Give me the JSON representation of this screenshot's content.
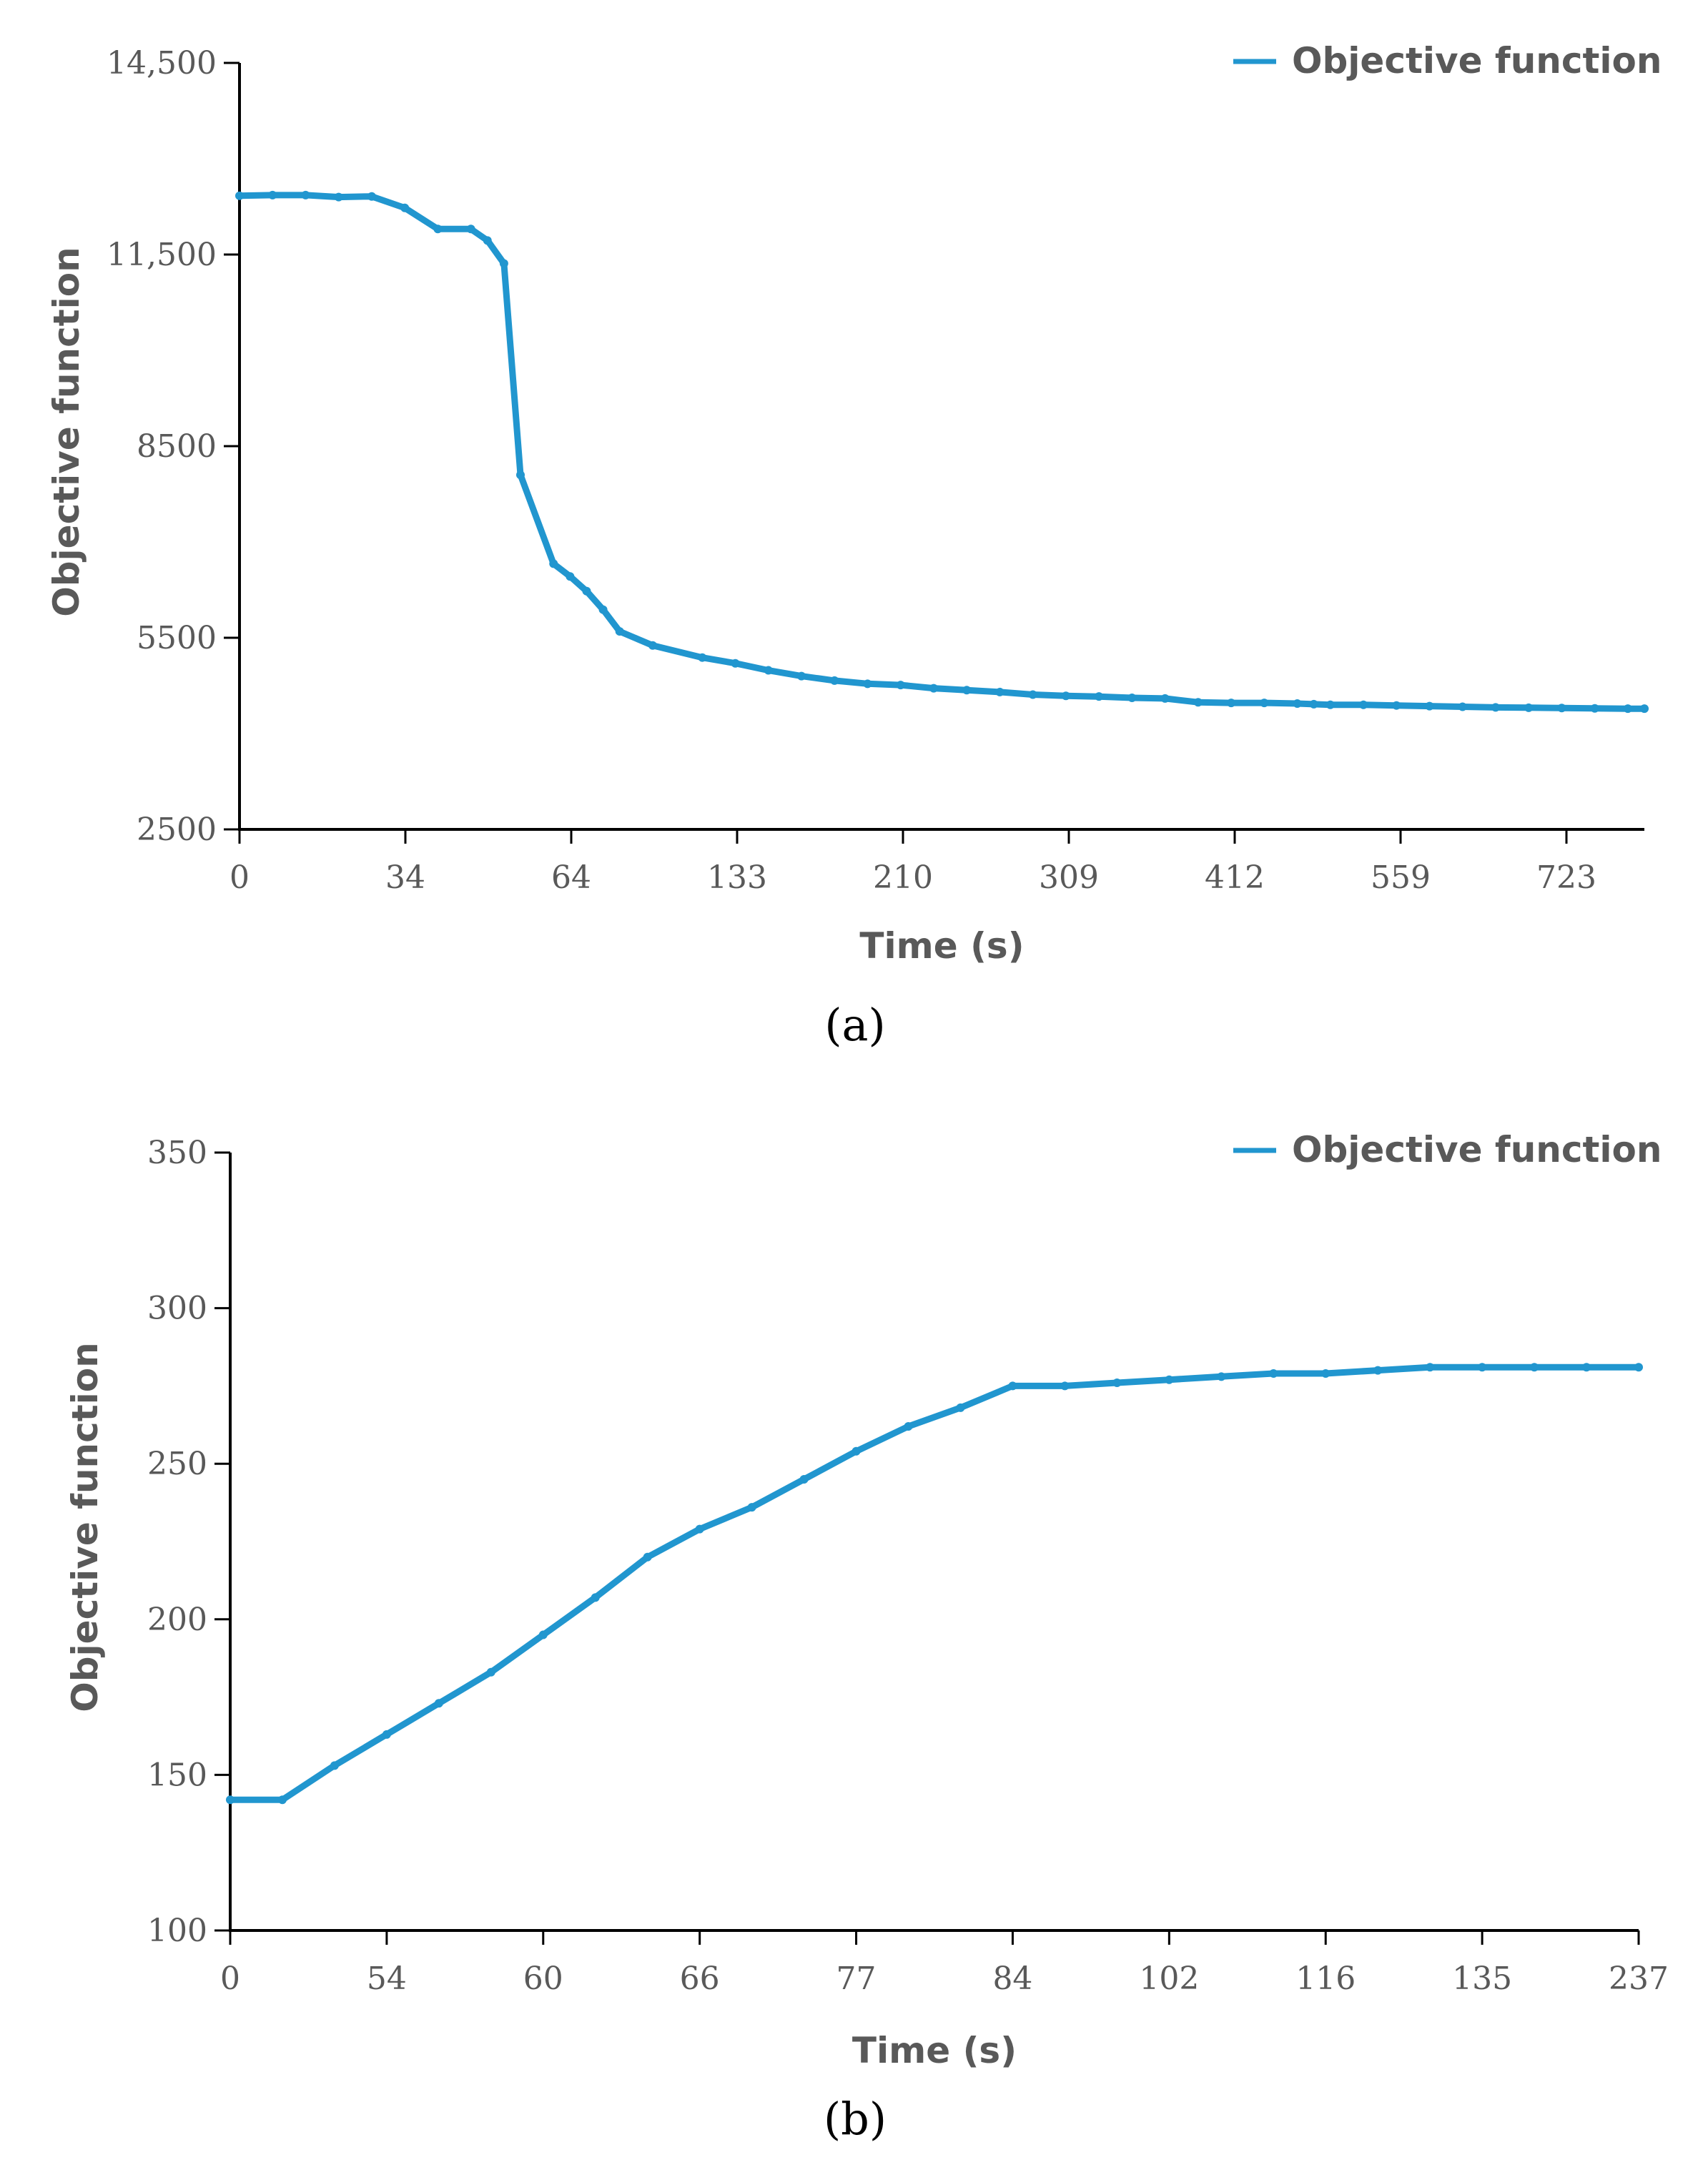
{
  "series_color": "#2196cf",
  "chart_data": [
    {
      "type": "line",
      "panel_label": "(a)",
      "xlabel": "Time (s)",
      "ylabel": "Objective function",
      "legend": "Objective function",
      "legend_position": "top-right",
      "grid": false,
      "ylim": [
        2500,
        14500
      ],
      "yticks": [
        2500,
        5500,
        8500,
        11500,
        14500
      ],
      "ytick_labels": [
        "2500",
        "5500",
        "8500",
        "11,500",
        "14,500"
      ],
      "xtick_labels": [
        "0",
        "34",
        "64",
        "133",
        "210",
        "309",
        "412",
        "559",
        "723"
      ],
      "x_index_range": [
        0,
        85
      ],
      "x_index": [
        0,
        2,
        4,
        6,
        8,
        10,
        12,
        14,
        15,
        16,
        17,
        19,
        20,
        21,
        22,
        23,
        25,
        28,
        30,
        32,
        34,
        36,
        38,
        40,
        42,
        44,
        46,
        48,
        50,
        52,
        54,
        56,
        58,
        60,
        62,
        64,
        65,
        66,
        68,
        70,
        72,
        74,
        76,
        78,
        80,
        82,
        84,
        85
      ],
      "values": [
        12420,
        12430,
        12430,
        12400,
        12410,
        12230,
        11900,
        11900,
        11720,
        11360,
        8050,
        6660,
        6460,
        6230,
        5940,
        5600,
        5380,
        5190,
        5100,
        4990,
        4900,
        4830,
        4780,
        4760,
        4710,
        4680,
        4650,
        4610,
        4590,
        4580,
        4560,
        4550,
        4490,
        4480,
        4480,
        4470,
        4460,
        4450,
        4450,
        4440,
        4430,
        4420,
        4410,
        4405,
        4400,
        4395,
        4390,
        4390
      ]
    },
    {
      "type": "line",
      "panel_label": "(b)",
      "xlabel": "Time (s)",
      "ylabel": "Objective function",
      "legend": "Objective function",
      "legend_position": "top-right",
      "grid": false,
      "ylim": [
        100,
        350
      ],
      "yticks": [
        100,
        150,
        200,
        250,
        300,
        350
      ],
      "ytick_labels": [
        "100",
        "150",
        "200",
        "250",
        "300",
        "350"
      ],
      "xtick_labels": [
        "0",
        "54",
        "60",
        "66",
        "77",
        "84",
        "102",
        "116",
        "135",
        "237"
      ],
      "x_index_range": [
        0,
        27
      ],
      "x_index": [
        0,
        1,
        2,
        3,
        4,
        5,
        6,
        7,
        8,
        9,
        10,
        11,
        12,
        13,
        14,
        15,
        16,
        17,
        18,
        19,
        20,
        21,
        22,
        23,
        24,
        25,
        26,
        27
      ],
      "values": [
        142,
        142,
        153,
        163,
        173,
        183,
        195,
        207,
        220,
        229,
        236,
        245,
        254,
        262,
        268,
        275,
        275,
        276,
        277,
        278,
        279,
        279,
        280,
        281,
        281,
        281,
        281,
        281
      ]
    }
  ]
}
